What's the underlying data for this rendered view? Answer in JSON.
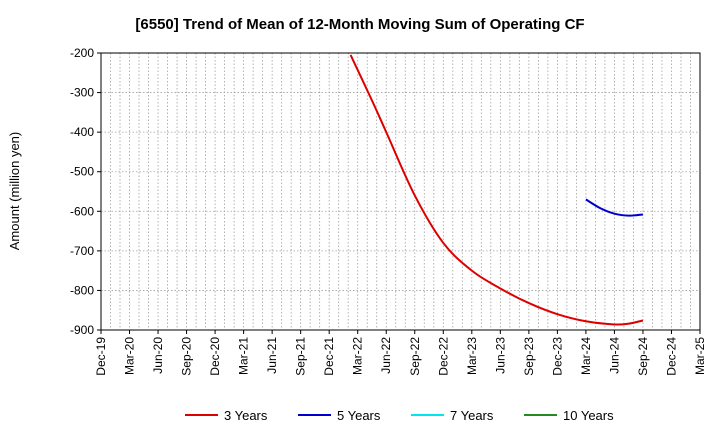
{
  "chart_data": {
    "type": "line",
    "title": "[6550]  Trend of Mean of 12-Month Moving Sum of Operating CF",
    "xlabel": "",
    "ylabel": "Amount (million yen)",
    "ylim": [
      -900,
      -200
    ],
    "yticks": [
      -200,
      -300,
      -400,
      -500,
      -600,
      -700,
      -800,
      -900
    ],
    "x_tick_labels": [
      "Dec-19",
      "Mar-20",
      "Jun-20",
      "Sep-20",
      "Dec-20",
      "Mar-21",
      "Jun-21",
      "Sep-21",
      "Dec-21",
      "Mar-22",
      "Jun-22",
      "Sep-22",
      "Dec-22",
      "Mar-23",
      "Jun-23",
      "Sep-23",
      "Dec-23",
      "Mar-24",
      "Jun-24",
      "Sep-24",
      "Dec-24",
      "Mar-25"
    ],
    "grid": true,
    "legend_position": "bottom",
    "series": [
      {
        "name": "3 Years",
        "color": "#dd0000",
        "points": [
          {
            "q": 8.75,
            "v": -205
          },
          {
            "q": 9.5,
            "v": -320
          },
          {
            "q": 10,
            "v": -400
          },
          {
            "q": 11,
            "v": -560
          },
          {
            "q": 12,
            "v": -680
          },
          {
            "q": 13,
            "v": -750
          },
          {
            "q": 14,
            "v": -795
          },
          {
            "q": 15,
            "v": -832
          },
          {
            "q": 16,
            "v": -860
          },
          {
            "q": 17,
            "v": -878
          },
          {
            "q": 18,
            "v": -886
          },
          {
            "q": 18.5,
            "v": -884
          },
          {
            "q": 19,
            "v": -876
          }
        ]
      },
      {
        "name": "5 Years",
        "color": "#0000cc",
        "points": [
          {
            "q": 17,
            "v": -570
          },
          {
            "q": 17.5,
            "v": -592
          },
          {
            "q": 18,
            "v": -606
          },
          {
            "q": 18.5,
            "v": -611
          },
          {
            "q": 19,
            "v": -608
          }
        ]
      },
      {
        "name": "7 Years",
        "color": "#00e5ee",
        "points": []
      },
      {
        "name": "10 Years",
        "color": "#228b22",
        "points": []
      }
    ]
  }
}
